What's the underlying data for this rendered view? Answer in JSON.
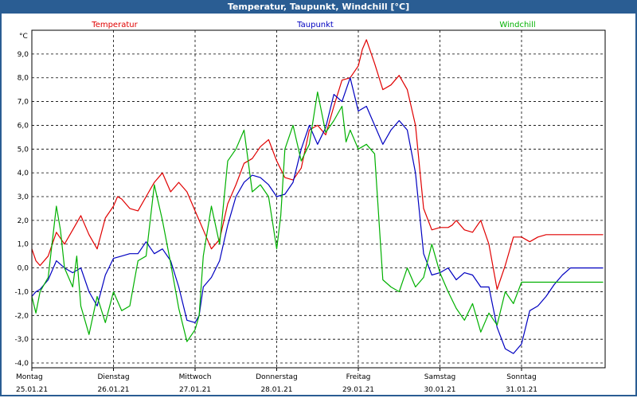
{
  "window_title": "Temperatur, Taupunkt, Windchill [°C]",
  "chart_data": {
    "type": "line",
    "title": "Temperatur, Taupunkt, Windchill [°C]",
    "ylabel": "°C",
    "ylim": [
      -4.2,
      10.0
    ],
    "yticks": [
      "9,0",
      "8,0",
      "7,0",
      "6,0",
      "5,0",
      "4,0",
      "3,0",
      "2,0",
      "1,0",
      "0,0",
      "-1,0",
      "-2,0",
      "-3,0",
      "-4,0"
    ],
    "ytick_values": [
      9,
      8,
      7,
      6,
      5,
      4,
      3,
      2,
      1,
      0,
      -1,
      -2,
      -3,
      -4
    ],
    "xlim": [
      0,
      7
    ],
    "days": [
      {
        "name": "Montag",
        "date": "25.01.21"
      },
      {
        "name": "Dienstag",
        "date": "26.01.21"
      },
      {
        "name": "Mittwoch",
        "date": "27.01.21"
      },
      {
        "name": "Donnerstag",
        "date": "28.01.21"
      },
      {
        "name": "Freitag",
        "date": "29.01.21"
      },
      {
        "name": "Samstag",
        "date": "30.01.21"
      },
      {
        "name": "Sonntag",
        "date": "31.01.21"
      }
    ],
    "grid": true,
    "legend_position": "top",
    "series": [
      {
        "name": "Temperatur",
        "color": "#e00000",
        "x": [
          0,
          0.05,
          0.1,
          0.2,
          0.3,
          0.4,
          0.5,
          0.6,
          0.7,
          0.8,
          0.9,
          1.0,
          1.05,
          1.1,
          1.2,
          1.3,
          1.4,
          1.5,
          1.6,
          1.7,
          1.8,
          1.9,
          2.0,
          2.1,
          2.2,
          2.3,
          2.4,
          2.5,
          2.6,
          2.7,
          2.8,
          2.9,
          3.0,
          3.1,
          3.2,
          3.3,
          3.4,
          3.5,
          3.6,
          3.7,
          3.8,
          3.9,
          4.0,
          4.05,
          4.1,
          4.2,
          4.3,
          4.4,
          4.5,
          4.55,
          4.6,
          4.7,
          4.8,
          4.9,
          5.0,
          5.1,
          5.15,
          5.2,
          5.3,
          5.4,
          5.5,
          5.6,
          5.7,
          5.8,
          5.9,
          6.0,
          6.1,
          6.2,
          6.3,
          6.4,
          6.5,
          6.6,
          6.7,
          6.8,
          6.9,
          7.0
        ],
        "values": [
          0.8,
          0.3,
          0.1,
          0.5,
          1.5,
          1.0,
          1.6,
          2.2,
          1.4,
          0.8,
          2.1,
          2.6,
          3.0,
          2.9,
          2.5,
          2.4,
          3.0,
          3.6,
          4.0,
          3.2,
          3.6,
          3.2,
          2.4,
          1.6,
          0.8,
          1.2,
          2.7,
          3.5,
          4.4,
          4.6,
          5.1,
          5.4,
          4.5,
          3.8,
          3.7,
          4.2,
          5.8,
          6.0,
          5.6,
          6.8,
          7.9,
          8.0,
          8.5,
          9.2,
          9.6,
          8.6,
          7.5,
          7.7,
          8.1,
          7.8,
          7.5,
          6.0,
          2.5,
          1.6,
          1.7,
          1.7,
          1.8,
          2.0,
          1.6,
          1.5,
          2.0,
          1.0,
          -0.9,
          0.1,
          1.3,
          1.3,
          1.1,
          1.3,
          1.4,
          1.4,
          1.4,
          1.4,
          1.4,
          1.4,
          1.4,
          1.4
        ]
      },
      {
        "name": "Taupunkt",
        "color": "#0000c0",
        "x": [
          0,
          0.05,
          0.1,
          0.2,
          0.3,
          0.4,
          0.5,
          0.6,
          0.7,
          0.8,
          0.9,
          1.0,
          1.1,
          1.2,
          1.3,
          1.4,
          1.5,
          1.6,
          1.7,
          1.8,
          1.9,
          2.0,
          2.05,
          2.1,
          2.2,
          2.3,
          2.4,
          2.5,
          2.6,
          2.7,
          2.8,
          2.9,
          3.0,
          3.1,
          3.2,
          3.3,
          3.4,
          3.5,
          3.6,
          3.7,
          3.8,
          3.9,
          4.0,
          4.1,
          4.2,
          4.3,
          4.4,
          4.5,
          4.6,
          4.7,
          4.8,
          4.9,
          5.0,
          5.1,
          5.2,
          5.3,
          5.4,
          5.5,
          5.6,
          5.7,
          5.8,
          5.9,
          6.0,
          6.1,
          6.2,
          6.3,
          6.4,
          6.5,
          6.6,
          6.7,
          6.8,
          6.9,
          7.0
        ],
        "values": [
          -1.2,
          -1.0,
          -0.9,
          -0.5,
          0.3,
          0.0,
          -0.2,
          0.0,
          -1.0,
          -1.6,
          -0.3,
          0.4,
          0.5,
          0.6,
          0.6,
          1.1,
          0.6,
          0.8,
          0.3,
          -0.8,
          -2.2,
          -2.3,
          -2.0,
          -0.8,
          -0.4,
          0.3,
          1.8,
          3.0,
          3.6,
          3.9,
          3.8,
          3.5,
          3.0,
          3.1,
          3.6,
          5.0,
          6.0,
          5.2,
          5.9,
          7.3,
          7.0,
          8.0,
          6.6,
          6.8,
          6.0,
          5.2,
          5.8,
          6.2,
          5.8,
          4.0,
          0.6,
          -0.3,
          -0.2,
          0.0,
          -0.5,
          -0.2,
          -0.3,
          -0.8,
          -0.8,
          -2.5,
          -3.4,
          -3.6,
          -3.2,
          -1.8,
          -1.6,
          -1.2,
          -0.7,
          -0.3,
          0.0,
          0.0,
          0.0,
          0.0,
          0.0
        ]
      },
      {
        "name": "Windchill",
        "color": "#00b000",
        "x": [
          0,
          0.05,
          0.1,
          0.2,
          0.3,
          0.35,
          0.4,
          0.5,
          0.55,
          0.6,
          0.7,
          0.8,
          0.9,
          1.0,
          1.1,
          1.2,
          1.3,
          1.4,
          1.5,
          1.6,
          1.7,
          1.8,
          1.9,
          2.0,
          2.05,
          2.1,
          2.2,
          2.3,
          2.4,
          2.5,
          2.6,
          2.7,
          2.8,
          2.9,
          3.0,
          3.05,
          3.1,
          3.2,
          3.3,
          3.4,
          3.5,
          3.6,
          3.7,
          3.8,
          3.85,
          3.9,
          4.0,
          4.1,
          4.2,
          4.3,
          4.4,
          4.5,
          4.6,
          4.7,
          4.8,
          4.9,
          5.0,
          5.1,
          5.2,
          5.3,
          5.4,
          5.5,
          5.6,
          5.7,
          5.8,
          5.9,
          6.0,
          6.1,
          6.2,
          6.3,
          6.4,
          6.5,
          6.6,
          6.7,
          6.8,
          6.9,
          7.0
        ],
        "values": [
          -1.2,
          -1.9,
          -1.0,
          -0.4,
          2.6,
          1.6,
          0.0,
          -0.8,
          0.5,
          -1.6,
          -2.8,
          -1.2,
          -2.3,
          -1.0,
          -1.8,
          -1.6,
          0.3,
          0.5,
          3.5,
          2.0,
          0.2,
          -1.7,
          -3.1,
          -2.6,
          -2.0,
          0.5,
          2.6,
          1.0,
          4.5,
          5.0,
          5.8,
          3.2,
          3.5,
          3.0,
          0.8,
          2.2,
          5.0,
          6.0,
          4.5,
          5.2,
          7.4,
          5.7,
          6.2,
          6.8,
          5.3,
          5.8,
          5.0,
          5.2,
          4.8,
          -0.5,
          -0.8,
          -1.0,
          0.0,
          -0.8,
          -0.4,
          1.0,
          -0.2,
          -1.0,
          -1.7,
          -2.2,
          -1.5,
          -2.7,
          -1.9,
          -2.4,
          -1.0,
          -1.5,
          -0.6,
          -0.6,
          -0.6,
          -0.6,
          -0.6,
          -0.6,
          -0.6,
          -0.6,
          -0.6,
          -0.6,
          -0.6
        ]
      }
    ]
  }
}
